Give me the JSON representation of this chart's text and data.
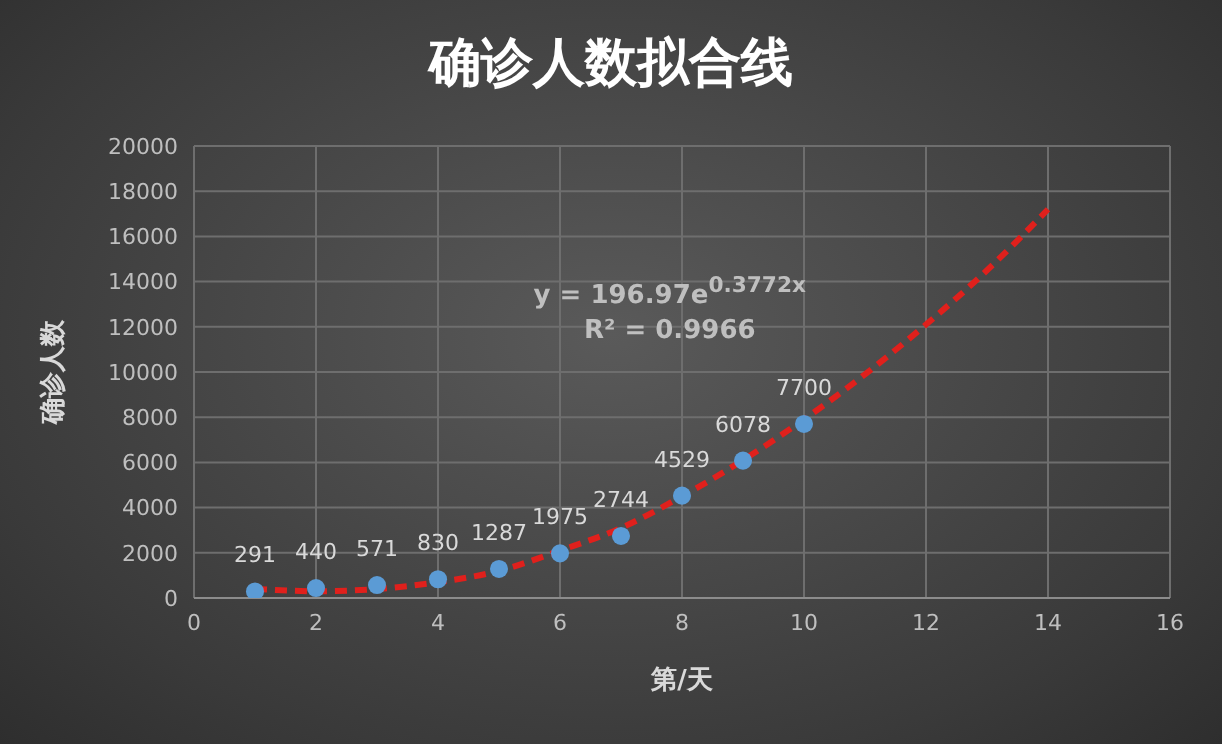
{
  "chart_data": {
    "type": "scatter",
    "title": "确诊人数拟合线",
    "xlabel": "第/天",
    "ylabel": "确诊人数",
    "annotations": [
      "y = 196.97e$^{0.3772x}$",
      "R² = 0.9966"
    ],
    "series": [
      {
        "color": "#5b9bd5",
        "marker": "circle",
        "x": [
          1,
          2,
          3,
          4,
          5,
          6,
          7,
          8,
          9,
          10
        ],
        "values": [
          291,
          440,
          571,
          830,
          1287,
          1975,
          2744,
          4529,
          6078,
          7700
        ],
        "data_labels": true
      },
      {
        "type": "line",
        "color": "#e0201c",
        "marker": "none",
        "line_style": "dashed",
        "x": [
          1,
          2,
          3,
          4,
          5,
          6,
          7,
          8,
          9,
          10,
          11,
          12,
          13,
          14
        ],
        "values": [
          400,
          300,
          400,
          700,
          1200,
          2100,
          3100,
          4500,
          6100,
          7900,
          9900,
          12100,
          14500,
          17200
        ]
      }
    ],
    "xlim": [
      0,
      16
    ],
    "xticks": [
      0,
      2,
      4,
      6,
      8,
      10,
      12,
      14,
      16
    ],
    "ylim": [
      0,
      20000
    ],
    "yticks": [
      0,
      2000,
      4000,
      6000,
      8000,
      10000,
      12000,
      14000,
      16000,
      18000,
      20000
    ],
    "grid": true,
    "legend": false
  }
}
